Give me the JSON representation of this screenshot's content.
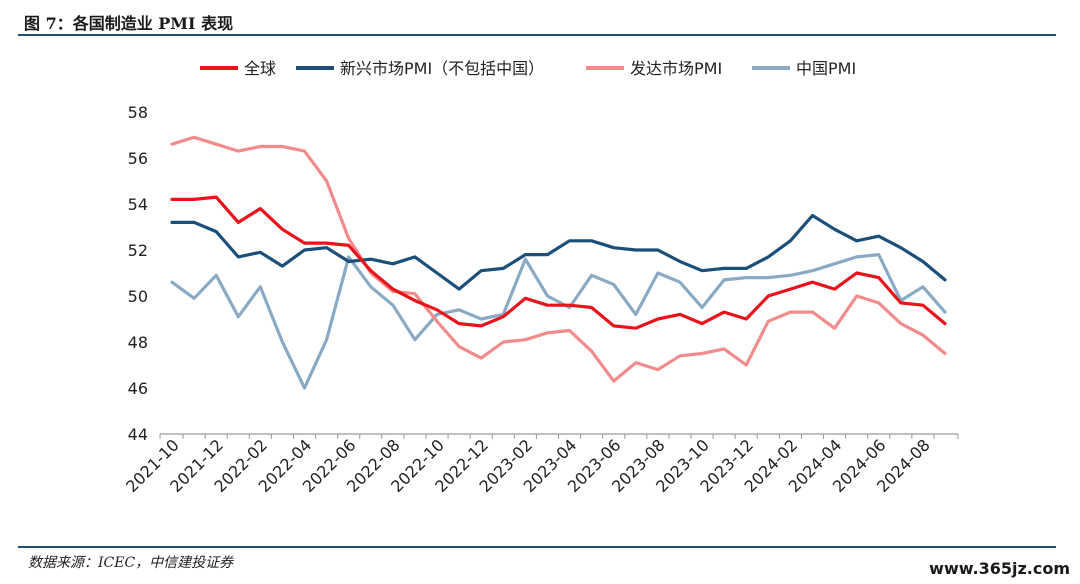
{
  "figure_title": "图 7：各国制造业 PMI 表现",
  "source": "数据来源：ICEC，中信建投证券",
  "watermark": "www.365jz.com",
  "chart_data": {
    "type": "line",
    "title": "",
    "xlabel": "",
    "ylabel": "",
    "ylim": [
      44,
      58
    ],
    "yticks": [
      44,
      46,
      48,
      50,
      52,
      54,
      56,
      58
    ],
    "grid": false,
    "legend_position": "top",
    "x": [
      "2021-10",
      "2021-11",
      "2021-12",
      "2022-01",
      "2022-02",
      "2022-03",
      "2022-04",
      "2022-05",
      "2022-06",
      "2022-07",
      "2022-08",
      "2022-09",
      "2022-10",
      "2022-11",
      "2022-12",
      "2023-01",
      "2023-02",
      "2023-03",
      "2023-04",
      "2023-05",
      "2023-06",
      "2023-07",
      "2023-08",
      "2023-09",
      "2023-10",
      "2023-11",
      "2023-12",
      "2024-01",
      "2024-02",
      "2024-03",
      "2024-04",
      "2024-05",
      "2024-06",
      "2024-07",
      "2024-08",
      "2024-09"
    ],
    "xtick_labels": [
      "2021-10",
      "2021-12",
      "2022-02",
      "2022-04",
      "2022-06",
      "2022-08",
      "2022-10",
      "2022-12",
      "2023-02",
      "2023-04",
      "2023-06",
      "2023-08",
      "2023-10",
      "2023-12",
      "2024-02",
      "2024-04",
      "2024-06",
      "2024-08"
    ],
    "series": [
      {
        "name": "全球",
        "color": "#e8131b",
        "values": [
          54.2,
          54.2,
          54.3,
          53.2,
          53.8,
          52.9,
          52.3,
          52.3,
          52.2,
          51.1,
          50.3,
          49.8,
          49.4,
          48.8,
          48.7,
          49.1,
          49.9,
          49.6,
          49.6,
          49.5,
          48.7,
          48.6,
          49.0,
          49.2,
          48.8,
          49.3,
          49.0,
          50.0,
          50.3,
          50.6,
          50.3,
          51.0,
          50.8,
          49.7,
          49.6,
          48.8
        ]
      },
      {
        "name": "新兴市场PMI（不包括中国）",
        "color": "#1b4f7a",
        "values": [
          53.2,
          53.2,
          52.8,
          51.7,
          51.9,
          51.3,
          52.0,
          52.1,
          51.5,
          51.6,
          51.4,
          51.7,
          51.0,
          50.3,
          51.1,
          51.2,
          51.8,
          51.8,
          52.4,
          52.4,
          52.1,
          52.0,
          52.0,
          51.5,
          51.1,
          51.2,
          51.2,
          51.7,
          52.4,
          53.5,
          52.9,
          52.4,
          52.6,
          52.1,
          51.5,
          50.7
        ]
      },
      {
        "name": "发达市场PMI",
        "color": "#f28b8b",
        "values": [
          56.6,
          56.9,
          56.6,
          56.3,
          56.5,
          56.5,
          56.3,
          55.0,
          52.5,
          51.0,
          50.2,
          50.1,
          48.9,
          47.8,
          47.3,
          48.0,
          48.1,
          48.4,
          48.5,
          47.6,
          46.3,
          47.1,
          46.8,
          47.4,
          47.5,
          47.7,
          47.0,
          48.9,
          49.3,
          49.3,
          48.6,
          50.0,
          49.7,
          48.8,
          48.3,
          47.5
        ]
      },
      {
        "name": "中国PMI",
        "color": "#8aa9c4",
        "values": [
          50.6,
          49.9,
          50.9,
          49.1,
          50.4,
          48.0,
          46.0,
          48.1,
          51.7,
          50.4,
          49.6,
          48.1,
          49.2,
          49.4,
          49.0,
          49.2,
          51.6,
          50.0,
          49.5,
          50.9,
          50.5,
          49.2,
          51.0,
          50.6,
          49.5,
          50.7,
          50.8,
          50.8,
          50.9,
          51.1,
          51.4,
          51.7,
          51.8,
          49.8,
          50.4,
          49.3
        ]
      }
    ]
  }
}
